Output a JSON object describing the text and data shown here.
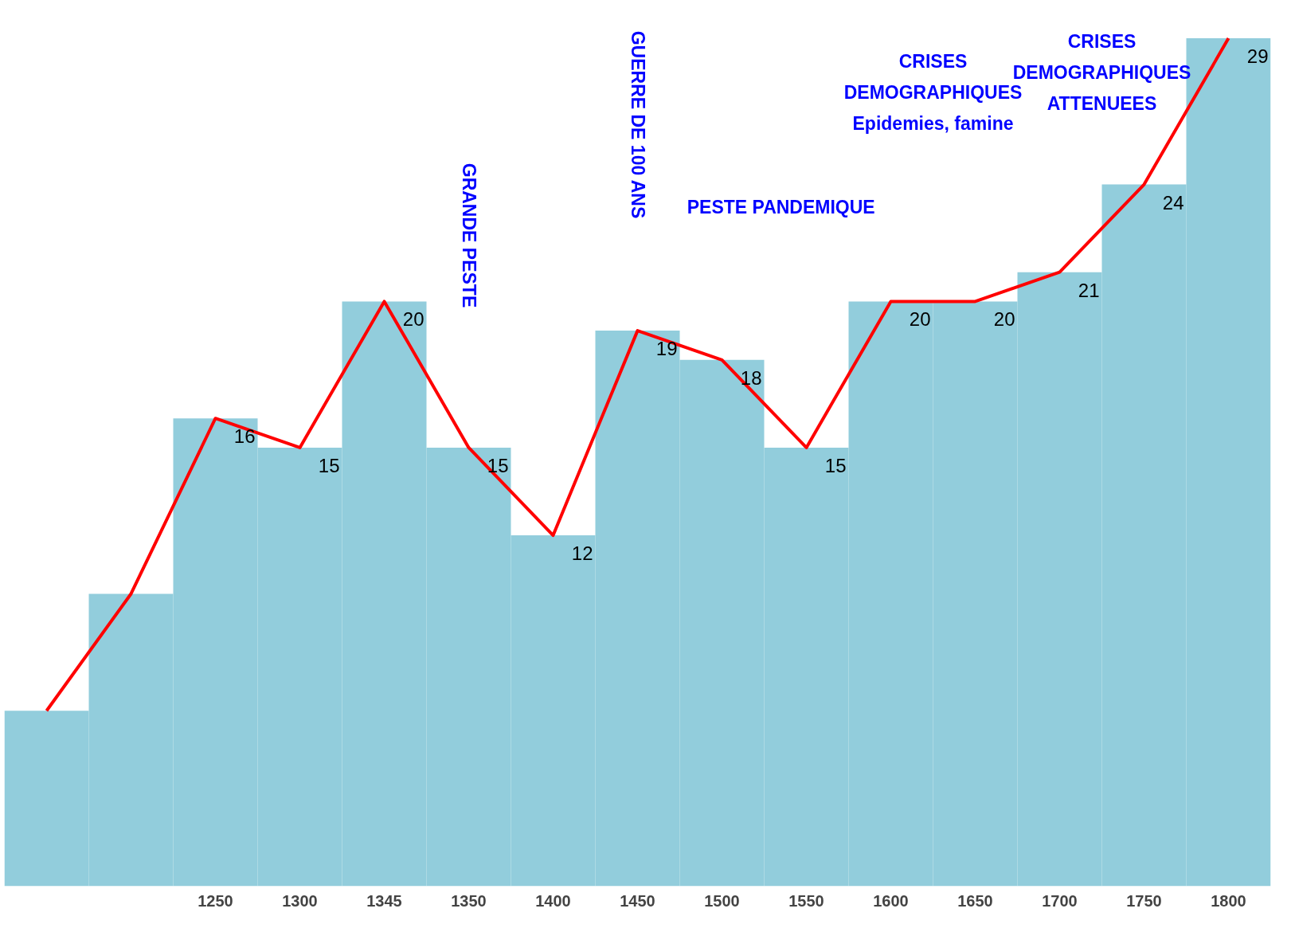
{
  "chart_data": {
    "type": "bar",
    "categories": [
      null,
      null,
      "1250",
      "1300",
      "1345",
      "1350",
      "1400",
      "1450",
      "1500",
      "1550",
      "1600",
      "1650",
      "1700",
      "1750",
      "1800"
    ],
    "series": [
      {
        "color": "#92cddc",
        "values": [
          6,
          10,
          16,
          15,
          20,
          15,
          12,
          19,
          18,
          15,
          20,
          20,
          21,
          24,
          29
        ],
        "value_labels": [
          null,
          null,
          "16",
          "15",
          "20",
          "15",
          "12",
          "19",
          "18",
          "15",
          "20",
          "20",
          "21",
          "24",
          "29"
        ]
      },
      {
        "type": "line",
        "color": "#ff0000",
        "values": [
          6,
          10,
          16,
          15,
          20,
          15,
          12,
          19,
          18,
          15,
          20,
          20,
          21,
          24,
          29
        ]
      }
    ],
    "annotations": [
      "GRANDE PESTE",
      "GUERRE DE 100 ANS",
      "PESTE PANDEMIQUE",
      "CRISES\nDEMOGRAPHIQUES\nEpidemies, famine",
      "CRISES\nDEMOGRAPHIQUES\nATTENUEES"
    ],
    "tick_labels": "x"
  }
}
